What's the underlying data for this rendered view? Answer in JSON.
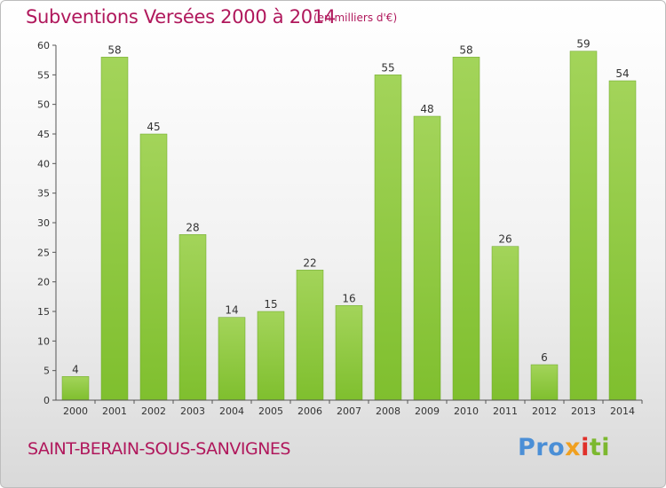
{
  "chart_data": {
    "type": "bar",
    "title": "Subventions Versées 2000 à 2014",
    "subtitle": "(en milliers d'€)",
    "xlabel": "",
    "ylabel": "",
    "categories": [
      "2000",
      "2001",
      "2002",
      "2003",
      "2004",
      "2005",
      "2006",
      "2007",
      "2008",
      "2009",
      "2010",
      "2011",
      "2012",
      "2013",
      "2014"
    ],
    "values": [
      4,
      58,
      45,
      28,
      14,
      15,
      22,
      16,
      55,
      48,
      58,
      26,
      6,
      59,
      54
    ],
    "ylim": [
      0,
      60
    ],
    "yticks": [
      0,
      5,
      10,
      15,
      20,
      25,
      30,
      35,
      40,
      45,
      50,
      55,
      60
    ],
    "grid": false,
    "legend": "none",
    "bar_color": "#7fbf2e",
    "bar_color_light": "#a3d45a",
    "title_color": "#b0185c"
  },
  "footer": {
    "commune": "SAINT-BERAIN-SOUS-SANVIGNES",
    "logo": {
      "p1": "Pro",
      "p2": "x",
      "p3": "i",
      "p4": "ti"
    }
  }
}
